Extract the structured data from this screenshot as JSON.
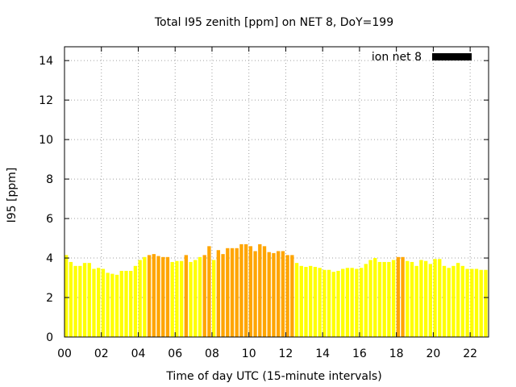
{
  "chart_data": {
    "type": "bar",
    "title": "Total I95 zenith [ppm] on NET 8, DoY=199",
    "xlabel": "Time of day UTC (15-minute intervals)",
    "ylabel": "I95 [ppm]",
    "xlim": [
      0,
      23
    ],
    "ylim": [
      0,
      14.7
    ],
    "x_ticks": [
      0,
      2,
      4,
      6,
      8,
      10,
      12,
      14,
      16,
      18,
      20,
      22
    ],
    "x_tick_labels": [
      "00",
      "02",
      "04",
      "06",
      "08",
      "10",
      "12",
      "14",
      "16",
      "18",
      "20",
      "22"
    ],
    "y_ticks": [
      0,
      2,
      4,
      6,
      8,
      10,
      12,
      14
    ],
    "y_tick_labels": [
      "0",
      "2",
      "4",
      "6",
      "8",
      "10",
      "12",
      "14"
    ],
    "grid": true,
    "legend_position": "top-right",
    "bar_width_hours": 0.19,
    "colors": {
      "low": "#ffff00",
      "elevated": "#ffa500",
      "legend": "#000000",
      "grid": "#a0a0a0"
    },
    "series": [
      {
        "name": "ion net 8",
        "legend_color": "#000000",
        "x": [
          0.0,
          0.25,
          0.5,
          0.75,
          1.0,
          1.25,
          1.5,
          1.75,
          2.0,
          2.25,
          2.5,
          2.75,
          3.0,
          3.25,
          3.5,
          3.75,
          4.0,
          4.25,
          4.5,
          4.75,
          5.0,
          5.25,
          5.5,
          5.75,
          6.0,
          6.25,
          6.5,
          6.75,
          7.0,
          7.25,
          7.5,
          7.75,
          8.0,
          8.25,
          8.5,
          8.75,
          9.0,
          9.25,
          9.5,
          9.75,
          10.0,
          10.25,
          10.5,
          10.75,
          11.0,
          11.25,
          11.5,
          11.75,
          12.0,
          12.25,
          12.5,
          12.75,
          13.0,
          13.25,
          13.5,
          13.75,
          14.0,
          14.25,
          14.5,
          14.75,
          15.0,
          15.25,
          15.5,
          15.75,
          16.0,
          16.25,
          16.5,
          16.75,
          17.0,
          17.25,
          17.5,
          17.75,
          18.0,
          18.25,
          18.5,
          18.75,
          19.0,
          19.25,
          19.5,
          19.75,
          20.0,
          20.25,
          20.5,
          20.75,
          21.0,
          21.25,
          21.5,
          21.75,
          22.0,
          22.25,
          22.5,
          22.75
        ],
        "values": [
          4.15,
          3.8,
          3.6,
          3.6,
          3.75,
          3.75,
          3.45,
          3.5,
          3.45,
          3.25,
          3.2,
          3.15,
          3.35,
          3.35,
          3.35,
          3.6,
          3.9,
          4.05,
          4.15,
          4.2,
          4.1,
          4.05,
          4.05,
          3.8,
          3.85,
          3.85,
          4.15,
          3.8,
          3.9,
          4.05,
          4.15,
          4.6,
          3.9,
          4.4,
          4.2,
          4.5,
          4.5,
          4.5,
          4.7,
          4.7,
          4.6,
          4.35,
          4.7,
          4.6,
          4.3,
          4.25,
          4.35,
          4.35,
          4.15,
          4.15,
          3.75,
          3.6,
          3.55,
          3.6,
          3.55,
          3.5,
          3.4,
          3.4,
          3.3,
          3.35,
          3.45,
          3.5,
          3.5,
          3.45,
          3.5,
          3.7,
          3.9,
          4.0,
          3.8,
          3.8,
          3.8,
          3.9,
          4.05,
          4.05,
          3.85,
          3.8,
          3.6,
          3.9,
          3.85,
          3.7,
          3.95,
          3.95,
          3.6,
          3.5,
          3.6,
          3.75,
          3.6,
          3.45,
          3.45,
          3.45,
          3.4,
          3.4
        ],
        "levels": [
          "low",
          "low",
          "low",
          "low",
          "low",
          "low",
          "low",
          "low",
          "low",
          "low",
          "low",
          "low",
          "low",
          "low",
          "low",
          "low",
          "low",
          "low",
          "elevated",
          "elevated",
          "elevated",
          "elevated",
          "elevated",
          "low",
          "low",
          "low",
          "elevated",
          "low",
          "low",
          "low",
          "elevated",
          "elevated",
          "low",
          "elevated",
          "elevated",
          "elevated",
          "elevated",
          "elevated",
          "elevated",
          "elevated",
          "elevated",
          "elevated",
          "elevated",
          "elevated",
          "elevated",
          "elevated",
          "elevated",
          "elevated",
          "elevated",
          "elevated",
          "low",
          "low",
          "low",
          "low",
          "low",
          "low",
          "low",
          "low",
          "low",
          "low",
          "low",
          "low",
          "low",
          "low",
          "low",
          "low",
          "low",
          "low",
          "low",
          "low",
          "low",
          "low",
          "elevated",
          "elevated",
          "low",
          "low",
          "low",
          "low",
          "low",
          "low",
          "low",
          "low",
          "low",
          "low",
          "low",
          "low",
          "low",
          "low",
          "low",
          "low",
          "low",
          "low"
        ]
      }
    ]
  }
}
